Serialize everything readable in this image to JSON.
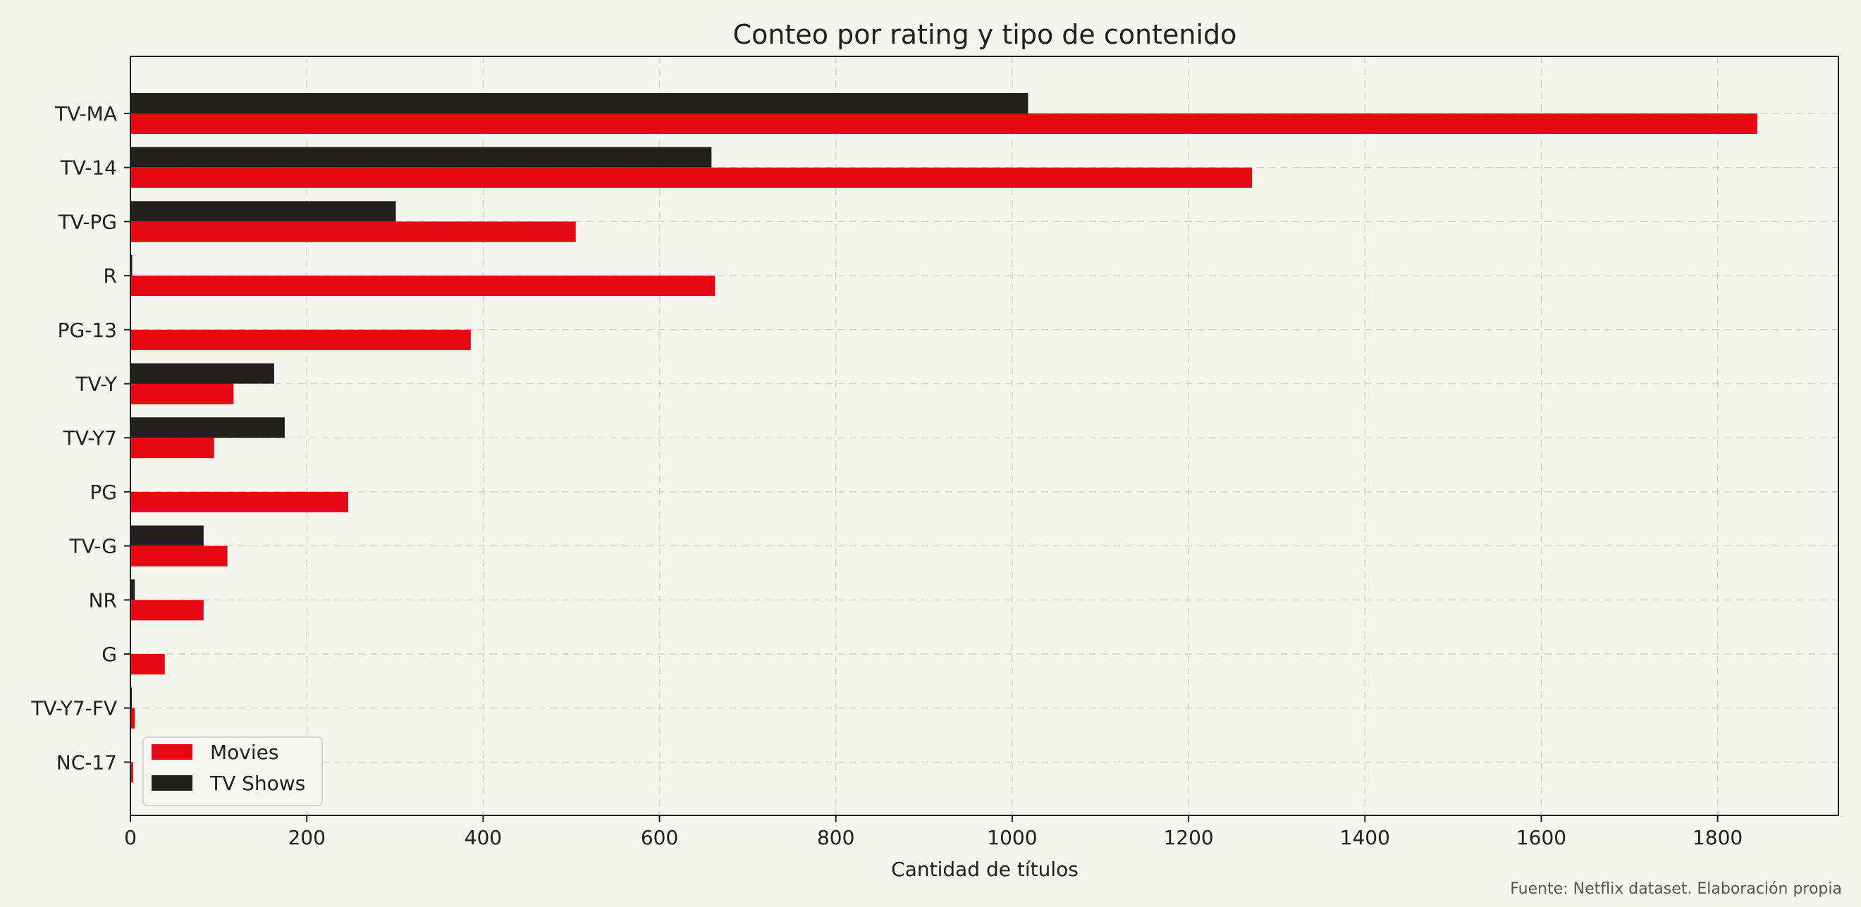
{
  "chart_data": {
    "type": "bar",
    "orientation": "horizontal",
    "title": "Conteo por rating y tipo de contenido",
    "xlabel": "Cantidad de títulos",
    "ylabel": "",
    "source": "Fuente: Netflix dataset. Elaboración propia",
    "categories": [
      "TV-MA",
      "TV-14",
      "TV-PG",
      "R",
      "PG-13",
      "TV-Y",
      "TV-Y7",
      "PG",
      "TV-G",
      "NR",
      "G",
      "TV-Y7-FV",
      "NC-17"
    ],
    "series": [
      {
        "name": "Movies",
        "color": "#e50914",
        "values": [
          1845,
          1272,
          505,
          663,
          386,
          117,
          95,
          247,
          110,
          83,
          39,
          5,
          3
        ]
      },
      {
        "name": "TV Shows",
        "color": "#221f1f",
        "values": [
          1018,
          659,
          301,
          2,
          0,
          163,
          175,
          0,
          83,
          5,
          0,
          1,
          0
        ]
      }
    ],
    "xlim": [
      0,
      1937
    ],
    "xticks": [
      0,
      200,
      400,
      600,
      800,
      1000,
      1200,
      1400,
      1600,
      1800
    ],
    "grid": true,
    "legend_position": "lower-left"
  }
}
